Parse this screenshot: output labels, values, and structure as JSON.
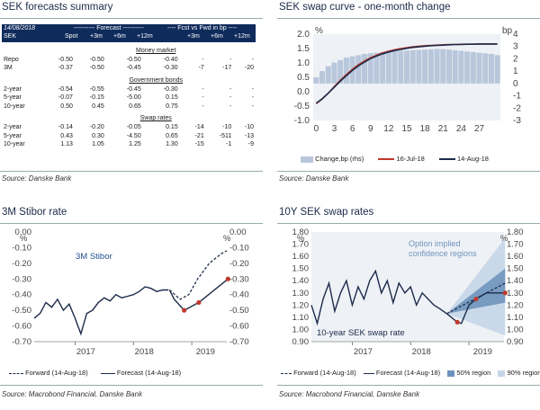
{
  "panels": {
    "forecasts": {
      "title": "SEK forecasts summary",
      "source": "Source: Danske Bank",
      "date": "14/08/2018",
      "header_group1": "---------- Forecast ----------",
      "header_group2": "---- Fcst vs Fwd in bp ----",
      "columns": [
        "SEK",
        "Spot",
        "+3m",
        "+6m",
        "+12m",
        "+3m",
        "+6m",
        "+12m"
      ],
      "sections": [
        {
          "name": "Money market",
          "rows": [
            [
              "Repo",
              "-0.50",
              "-0.50",
              "-0.50",
              "-0.40",
              "",
              "",
              ""
            ],
            [
              "3M",
              "-0.37",
              "-0.50",
              "-0.45",
              "-0.30",
              "-7",
              "-17",
              "-20"
            ]
          ]
        },
        {
          "name": "Government bonds",
          "rows": [
            [
              "2-year",
              "-0.54",
              "-0.55",
              "-0.45",
              "-0.30",
              "",
              "",
              ""
            ],
            [
              "5-year",
              "-0.07",
              "-0.15",
              "-5.00",
              "0.15",
              "",
              "",
              ""
            ],
            [
              "10-year",
              "0.50",
              "0.45",
              "0.65",
              "0.75",
              "",
              "",
              ""
            ]
          ]
        },
        {
          "name": "Swap rates",
          "rows": [
            [
              "2-year",
              "-0.14",
              "-0.20",
              "-0.05",
              "0.15",
              "-14",
              "-10",
              "-10"
            ],
            [
              "5-year",
              "0.43",
              "0.30",
              "-4.50",
              "0.65",
              "-21",
              "-511",
              "-13"
            ],
            [
              "10-year",
              "1.13",
              "1.05",
              "1.25",
              "1.30",
              "-15",
              "-1",
              "-9"
            ]
          ]
        }
      ]
    },
    "swapcurve": {
      "title": "SEK swap curve - one-month change",
      "source": "Source: Danske Bank",
      "legend": [
        "Change,bp (rhs)",
        "16-Jul-18",
        "14-Aug-18"
      ],
      "left_unit": "%",
      "right_unit": "bp",
      "colors": {
        "bars": "#b9c7dc",
        "jul": "#c0392b",
        "aug": "#1c2b4a"
      }
    },
    "stibor": {
      "title": "3M Stibor rate",
      "source": "Source: Macrobond Financial, Danske Bank",
      "label": "3M Stibor",
      "unit_left": "%",
      "unit_right": "%",
      "legend": [
        "Forward (14-Aug-18)",
        "Forecast (14-Aug-18)"
      ],
      "years": [
        "2017",
        "2018",
        "2019"
      ]
    },
    "swap10y": {
      "title": "10Y SEK swap rates",
      "source": "Source: Macrobond Financial, Danske Bank",
      "label": "10-year SEK swap rate",
      "annotation_line1": "Option implied",
      "annotation_line2": "confidence regions",
      "unit_left": "%",
      "unit_right": "%",
      "legend": [
        "Forward (14-Aug-18)",
        "Forecast (14-Aug-18)",
        "50% region",
        "90% region"
      ],
      "years": [
        "2017",
        "2018",
        "2019"
      ]
    }
  },
  "chart_data": [
    {
      "type": "line",
      "title": "SEK swap curve - one-month change",
      "x": [
        0,
        1,
        2,
        3,
        4,
        5,
        6,
        7,
        8,
        9,
        10,
        11,
        12,
        13,
        14,
        15,
        16,
        17,
        18,
        19,
        20,
        21,
        22,
        23,
        24,
        25,
        26,
        27,
        28,
        29,
        30
      ],
      "xticks": [
        0,
        3,
        6,
        9,
        12,
        15,
        18,
        21,
        24,
        27
      ],
      "ylim_left": [
        -1.0,
        2.0
      ],
      "yticks_left": [
        "2.0",
        "1.5",
        "1.0",
        "0.5",
        "0.0",
        "-0.5",
        "-1.0"
      ],
      "ylim_right": [
        -3,
        4
      ],
      "yticks_right": [
        "4",
        "3",
        "2",
        "1",
        "0",
        "-1",
        "-2",
        "-3"
      ],
      "series": [
        {
          "name": "16-Jul-18",
          "axis": "left",
          "values": [
            -0.42,
            -0.25,
            -0.05,
            0.18,
            0.4,
            0.6,
            0.78,
            0.94,
            1.07,
            1.18,
            1.27,
            1.35,
            1.41,
            1.46,
            1.5,
            1.53,
            1.56,
            1.58,
            1.6,
            1.61,
            1.62,
            1.63,
            1.64,
            1.64,
            1.65,
            1.65,
            1.65,
            1.66,
            1.66,
            1.66,
            1.66
          ]
        },
        {
          "name": "14-Aug-18",
          "axis": "left",
          "values": [
            -0.4,
            -0.24,
            -0.05,
            0.16,
            0.37,
            0.56,
            0.74,
            0.9,
            1.03,
            1.15,
            1.24,
            1.32,
            1.38,
            1.43,
            1.47,
            1.51,
            1.54,
            1.56,
            1.58,
            1.6,
            1.61,
            1.62,
            1.63,
            1.64,
            1.64,
            1.65,
            1.65,
            1.66,
            1.66,
            1.66,
            1.66
          ]
        },
        {
          "name": "Change,bp (rhs)",
          "type": "bar",
          "axis": "right",
          "values": [
            0.5,
            1.0,
            1.4,
            1.7,
            1.9,
            2.1,
            2.2,
            2.3,
            2.4,
            2.45,
            2.5,
            2.55,
            2.6,
            2.62,
            2.65,
            2.67,
            2.7,
            2.72,
            2.75,
            2.77,
            2.8,
            2.78,
            2.75,
            2.7,
            2.65,
            2.6,
            2.55,
            2.5,
            2.45,
            2.4,
            2.3
          ]
        }
      ]
    },
    {
      "type": "line",
      "title": "3M Stibor rate",
      "xlim": [
        2016.3,
        2019.6
      ],
      "xticks": [
        "2017",
        "2018",
        "2019"
      ],
      "ylim": [
        -0.7,
        0.0
      ],
      "yticks": [
        "0.00",
        "-0.10",
        "-0.20",
        "-0.30",
        "-0.40",
        "-0.50",
        "-0.60",
        "-0.70"
      ],
      "series": [
        {
          "name": "3M Stibor",
          "x": [
            2016.3,
            2016.4,
            2016.5,
            2016.6,
            2016.7,
            2016.8,
            2016.9,
            2017.0,
            2017.05,
            2017.1,
            2017.2,
            2017.3,
            2017.4,
            2017.5,
            2017.6,
            2017.7,
            2017.8,
            2017.9,
            2018.0,
            2018.1,
            2018.2,
            2018.3,
            2018.4,
            2018.5,
            2018.6
          ],
          "values": [
            -0.55,
            -0.52,
            -0.45,
            -0.48,
            -0.43,
            -0.5,
            -0.46,
            -0.55,
            -0.6,
            -0.65,
            -0.52,
            -0.5,
            -0.45,
            -0.42,
            -0.44,
            -0.4,
            -0.42,
            -0.41,
            -0.4,
            -0.38,
            -0.35,
            -0.36,
            -0.38,
            -0.37,
            -0.37
          ]
        },
        {
          "name": "Forward (14-Aug-18)",
          "x": [
            2018.62,
            2018.8,
            2018.95,
            2019.1,
            2019.3,
            2019.5,
            2019.6
          ],
          "values": [
            -0.37,
            -0.43,
            -0.4,
            -0.3,
            -0.2,
            -0.14,
            -0.12
          ]
        },
        {
          "name": "Forecast (14-Aug-18)",
          "x": [
            2018.62,
            2018.7,
            2018.87,
            2019.12,
            2019.62
          ],
          "values": [
            -0.37,
            -0.43,
            -0.5,
            -0.45,
            -0.3
          ]
        }
      ]
    },
    {
      "type": "line",
      "title": "10Y SEK swap rates",
      "xlim": [
        2016.3,
        2019.6
      ],
      "xticks": [
        "2017",
        "2018",
        "2019"
      ],
      "ylim": [
        0.9,
        1.8
      ],
      "yticks": [
        "1.80",
        "1.70",
        "1.60",
        "1.50",
        "1.40",
        "1.30",
        "1.20",
        "1.10",
        "1.00",
        "0.90"
      ],
      "series": [
        {
          "name": "10-year SEK swap rate",
          "x": [
            2016.3,
            2016.4,
            2016.5,
            2016.6,
            2016.7,
            2016.8,
            2016.9,
            2017.0,
            2017.1,
            2017.2,
            2017.3,
            2017.4,
            2017.5,
            2017.6,
            2017.7,
            2017.8,
            2017.9,
            2018.0,
            2018.1,
            2018.2,
            2018.3,
            2018.4,
            2018.5,
            2018.62
          ],
          "values": [
            1.2,
            1.05,
            1.25,
            1.38,
            1.15,
            1.3,
            1.4,
            1.2,
            1.35,
            1.25,
            1.4,
            1.48,
            1.3,
            1.4,
            1.22,
            1.38,
            1.3,
            1.35,
            1.2,
            1.3,
            1.25,
            1.2,
            1.17,
            1.13
          ]
        },
        {
          "name": "Forward (14-Aug-18)",
          "x": [
            2018.62,
            2019.62
          ],
          "values": [
            1.13,
            1.38
          ]
        },
        {
          "name": "Forecast (14-Aug-18)",
          "x": [
            2018.62,
            2018.8,
            2018.87,
            2019.0,
            2019.12,
            2019.3,
            2019.62
          ],
          "values": [
            1.13,
            1.06,
            1.05,
            1.2,
            1.25,
            1.3,
            1.3
          ]
        },
        {
          "name": "50% region",
          "x": [
            2018.62,
            2019.62
          ],
          "upper": [
            1.13,
            1.5
          ],
          "lower": [
            1.13,
            1.22
          ]
        },
        {
          "name": "90% region",
          "x": [
            2018.62,
            2019.62
          ],
          "upper": [
            1.13,
            1.75
          ],
          "lower": [
            1.13,
            0.95
          ]
        }
      ]
    }
  ]
}
